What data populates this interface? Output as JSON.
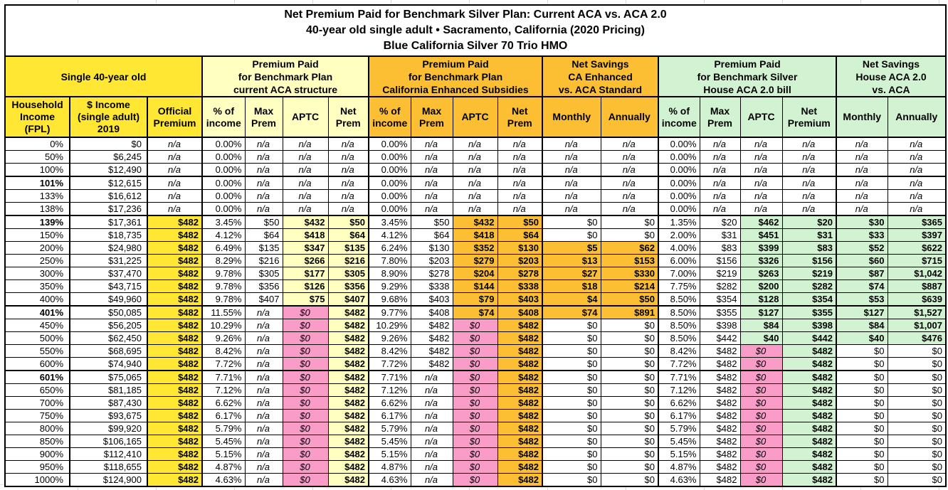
{
  "colors": {
    "yellow": "#FFE733",
    "light_yellow": "#FFFFC0",
    "orange": "#FCBF33",
    "green": "#D2F3D2",
    "pink": "#F99CC8"
  },
  "chart_data": {
    "type": "table",
    "title_lines": [
      "Net Premium Paid for Benchmark Silver Plan: Current ACA vs. ACA 2.0",
      "40-year old single adult • Sacramento, California (2020 Pricing)",
      "Blue California Silver 70 Trio HMO"
    ],
    "groups": [
      {
        "label": "Single 40-year old",
        "span": 3,
        "bg": "y"
      },
      {
        "label": "Premium Paid\nfor Benchmark Plan\ncurrent ACA structure",
        "span": 4,
        "bg": "ly"
      },
      {
        "label": "Premium Paid\nfor Benchmark Plan\nCalifornia Enhanced Subsidies",
        "span": 4,
        "bg": "o"
      },
      {
        "label": "Net Savings\nCA Enhanced\nvs. ACA Standard",
        "span": 2,
        "bg": "o"
      },
      {
        "label": "Premium Paid\nfor Benchmark Silver\nHouse ACA 2.0 bill",
        "span": 4,
        "bg": "g"
      },
      {
        "label": "Net Savings\nHouse ACA 2.0\nvs. ACA",
        "span": 2,
        "bg": "g"
      }
    ],
    "columns": [
      {
        "t": "Household\nIncome\n(FPL)",
        "g": "y"
      },
      {
        "t": "$ Income\n(single adult)\n2019",
        "g": "y"
      },
      {
        "t": "Official\nPremium",
        "g": "y"
      },
      {
        "t": "% of\nincome",
        "g": "ly"
      },
      {
        "t": "Max\nPrem",
        "g": "ly"
      },
      {
        "t": "APTC",
        "g": "ly"
      },
      {
        "t": "Net\nPrem",
        "g": "ly"
      },
      {
        "t": "% of\nincome",
        "g": "o"
      },
      {
        "t": "Max\nPrem",
        "g": "o"
      },
      {
        "t": "APTC",
        "g": "o"
      },
      {
        "t": "Net\nPrem",
        "g": "o"
      },
      {
        "t": "Monthly",
        "g": "o"
      },
      {
        "t": "Annually",
        "g": "o"
      },
      {
        "t": "% of\nincome",
        "g": "g"
      },
      {
        "t": "Max\nPrem",
        "g": "g"
      },
      {
        "t": "APTC",
        "g": "g"
      },
      {
        "t": "Net\nPremium",
        "g": "g"
      },
      {
        "t": "Monthly",
        "g": "g"
      },
      {
        "t": "Annually",
        "g": "g"
      }
    ],
    "col_keys": [
      "income",
      "official_premium",
      "aca_pct_income",
      "aca_max_prem",
      "aca_aptc",
      "aca_net_prem",
      "ca_pct_income",
      "ca_max_prem",
      "ca_aptc",
      "ca_net_prem",
      "ca_savings_monthly",
      "ca_savings_annually",
      "house_pct_income",
      "house_max_prem",
      "house_aptc",
      "house_net_premium",
      "house_savings_monthly",
      "house_savings_annually"
    ],
    "rows": [
      {
        "fpl": "0%",
        "b": false,
        "sep": false,
        "c": [
          "$0",
          "n/a|na",
          "0.00%|i",
          "n/a|na",
          "n/a|na",
          "n/a|na",
          "0.00%|i",
          "n/a|na",
          "n/a|na",
          "n/a|na",
          "n/a|na",
          "n/a|na",
          "0.00%|i",
          "n/a|na",
          "n/a|na",
          "n/a|na",
          "n/a|na",
          "n/a|na"
        ]
      },
      {
        "fpl": "50%",
        "b": false,
        "sep": false,
        "c": [
          "$6,245",
          "n/a|na",
          "0.00%|i",
          "n/a|na",
          "n/a|na",
          "n/a|na",
          "0.00%|i",
          "n/a|na",
          "n/a|na",
          "n/a|na",
          "n/a|na",
          "n/a|na",
          "0.00%|i",
          "n/a|na",
          "n/a|na",
          "n/a|na",
          "n/a|na",
          "n/a|na"
        ]
      },
      {
        "fpl": "100%",
        "b": false,
        "sep": false,
        "c": [
          "$12,490",
          "n/a|na",
          "0.00%|i",
          "n/a|na",
          "n/a|na",
          "n/a|na",
          "0.00%|i",
          "n/a|na",
          "n/a|na",
          "n/a|na",
          "n/a|na",
          "n/a|na",
          "0.00%|i",
          "n/a|na",
          "n/a|na",
          "n/a|na",
          "n/a|na",
          "n/a|na"
        ]
      },
      {
        "fpl": "101%",
        "b": true,
        "sep": true,
        "c": [
          "$12,615",
          "n/a|na",
          "0.00%|i",
          "n/a|na",
          "n/a|na",
          "n/a|na",
          "0.00%|i",
          "n/a|na",
          "n/a|na",
          "n/a|na",
          "n/a|na",
          "n/a|na",
          "0.00%|i",
          "n/a|na",
          "n/a|na",
          "n/a|na",
          "n/a|na",
          "n/a|na"
        ]
      },
      {
        "fpl": "133%",
        "b": false,
        "sep": false,
        "c": [
          "$16,612",
          "n/a|na",
          "0.00%|i",
          "n/a|na",
          "n/a|na",
          "n/a|na",
          "0.00%|i",
          "n/a|na",
          "n/a|na",
          "n/a|na",
          "n/a|na",
          "n/a|na",
          "0.00%|i",
          "n/a|na",
          "n/a|na",
          "n/a|na",
          "n/a|na",
          "n/a|na"
        ]
      },
      {
        "fpl": "138%",
        "b": false,
        "sep": false,
        "c": [
          "$17,236",
          "n/a|na",
          "0.00%|i",
          "n/a|na",
          "n/a|na",
          "n/a|na",
          "0.00%|i",
          "n/a|na",
          "n/a|na",
          "n/a|na",
          "n/a|na",
          "n/a|na",
          "0.00%|i",
          "n/a|na",
          "n/a|na",
          "n/a|na",
          "n/a|na",
          "n/a|na"
        ]
      },
      {
        "fpl": "139%",
        "b": true,
        "sep": true,
        "c": [
          "$17,361",
          "$482|y",
          "3.45%",
          "$50",
          "$432|ly",
          "$50|ly",
          "3.45%",
          "$50",
          "$432|o",
          "$50|o",
          "$0",
          "$0",
          "1.35%",
          "$20",
          "$462|g",
          "$20|g",
          "$30|g",
          "$365|g"
        ]
      },
      {
        "fpl": "150%",
        "b": false,
        "sep": false,
        "c": [
          "$18,735",
          "$482|y",
          "4.12%",
          "$64",
          "$418|ly",
          "$64|ly",
          "4.12%",
          "$64",
          "$418|o",
          "$64|o",
          "$0",
          "$0",
          "2.00%",
          "$31",
          "$451|g",
          "$31|g",
          "$33|g",
          "$397|g"
        ]
      },
      {
        "fpl": "200%",
        "b": false,
        "sep": false,
        "c": [
          "$24,980",
          "$482|y",
          "6.49%",
          "$135",
          "$347|ly",
          "$135|ly",
          "6.24%",
          "$130",
          "$352|o",
          "$130|o",
          "$5|o",
          "$62|o",
          "4.00%",
          "$83",
          "$399|g",
          "$83|g",
          "$52|g",
          "$622|g"
        ]
      },
      {
        "fpl": "250%",
        "b": false,
        "sep": false,
        "c": [
          "$31,225",
          "$482|y",
          "8.29%",
          "$216",
          "$266|ly",
          "$216|ly",
          "7.80%",
          "$203",
          "$279|o",
          "$203|o",
          "$13|o",
          "$153|o",
          "6.00%",
          "$156",
          "$326|g",
          "$156|g",
          "$60|g",
          "$715|g"
        ]
      },
      {
        "fpl": "300%",
        "b": false,
        "sep": false,
        "c": [
          "$37,470",
          "$482|y",
          "9.78%",
          "$305",
          "$177|ly",
          "$305|ly",
          "8.90%",
          "$278",
          "$204|o",
          "$278|o",
          "$27|o",
          "$330|o",
          "7.00%",
          "$219",
          "$263|g",
          "$219|g",
          "$87|g",
          "$1,042|g"
        ]
      },
      {
        "fpl": "350%",
        "b": false,
        "sep": false,
        "c": [
          "$43,715",
          "$482|y",
          "9.78%",
          "$356",
          "$126|ly",
          "$356|ly",
          "9.29%",
          "$338",
          "$144|o",
          "$338|o",
          "$18|o",
          "$214|o",
          "7.75%",
          "$282",
          "$200|g",
          "$282|g",
          "$74|g",
          "$887|g"
        ]
      },
      {
        "fpl": "400%",
        "b": false,
        "sep": false,
        "c": [
          "$49,960",
          "$482|y",
          "9.78%",
          "$407",
          "$75|ly",
          "$407|ly",
          "9.68%",
          "$403",
          "$79|o",
          "$403|o",
          "$4|o",
          "$50|o",
          "8.50%",
          "$354",
          "$128|g",
          "$354|g",
          "$53|g",
          "$639|g"
        ]
      },
      {
        "fpl": "401%",
        "b": true,
        "sep": true,
        "c": [
          "$50,085",
          "$482|y",
          "11.55%|i",
          "n/a|na",
          "$0|pk",
          "$482|ly",
          "9.77%",
          "$408",
          "$74|o",
          "$408|o",
          "$74|o",
          "$891|o",
          "8.50%",
          "$355",
          "$127|g",
          "$355|g",
          "$127|g",
          "$1,527|g"
        ]
      },
      {
        "fpl": "450%",
        "b": false,
        "sep": false,
        "c": [
          "$56,205",
          "$482|y",
          "10.29%|i",
          "n/a|na",
          "$0|pk",
          "$482|ly",
          "10.29%|i",
          "$482",
          "$0|pk",
          "$482|o",
          "$0",
          "$0",
          "8.50%",
          "$398",
          "$84|g",
          "$398|g",
          "$84|g",
          "$1,007|g"
        ]
      },
      {
        "fpl": "500%",
        "b": false,
        "sep": false,
        "c": [
          "$62,450",
          "$482|y",
          "9.26%|i",
          "n/a|na",
          "$0|pk",
          "$482|ly",
          "9.26%|i",
          "$482",
          "$0|pk",
          "$482|o",
          "$0",
          "$0",
          "8.50%",
          "$442",
          "$40|g",
          "$442|g",
          "$40|g",
          "$476|g"
        ]
      },
      {
        "fpl": "550%",
        "b": false,
        "sep": false,
        "c": [
          "$68,695",
          "$482|y",
          "8.42%|i",
          "n/a|na",
          "$0|pk",
          "$482|ly",
          "8.42%|i",
          "$482",
          "$0|pk",
          "$482|o",
          "$0",
          "$0",
          "8.42%|i",
          "$482",
          "$0|pk",
          "$482|g",
          "$0",
          "$0"
        ]
      },
      {
        "fpl": "600%",
        "b": false,
        "sep": false,
        "c": [
          "$74,940",
          "$482|y",
          "7.72%|i",
          "n/a|na",
          "$0|pk",
          "$482|ly",
          "7.72%|i",
          "$482",
          "$0|pk",
          "$482|o",
          "$0",
          "$0",
          "7.72%|i",
          "$482",
          "$0|pk",
          "$482|g",
          "$0",
          "$0"
        ]
      },
      {
        "fpl": "601%",
        "b": true,
        "sep": true,
        "c": [
          "$75,065",
          "$482|y",
          "7.71%|i",
          "n/a|na",
          "$0|pk",
          "$482|ly",
          "7.71%|i",
          "n/a|na",
          "$0|pk",
          "$482|o",
          "$0",
          "$0",
          "7.71%|i",
          "$482",
          "$0|pk",
          "$482|g",
          "$0",
          "$0"
        ]
      },
      {
        "fpl": "650%",
        "b": false,
        "sep": false,
        "c": [
          "$81,185",
          "$482|y",
          "7.12%|i",
          "n/a|na",
          "$0|pk",
          "$482|ly",
          "7.12%|i",
          "n/a|na",
          "$0|pk",
          "$482|o",
          "$0",
          "$0",
          "7.12%|i",
          "$482",
          "$0|pk",
          "$482|g",
          "$0",
          "$0"
        ]
      },
      {
        "fpl": "700%",
        "b": false,
        "sep": false,
        "c": [
          "$87,430",
          "$482|y",
          "6.62%|i",
          "n/a|na",
          "$0|pk",
          "$482|ly",
          "6.62%|i",
          "n/a|na",
          "$0|pk",
          "$482|o",
          "$0",
          "$0",
          "6.62%|i",
          "$482",
          "$0|pk",
          "$482|g",
          "$0",
          "$0"
        ]
      },
      {
        "fpl": "750%",
        "b": false,
        "sep": false,
        "c": [
          "$93,675",
          "$482|y",
          "6.17%|i",
          "n/a|na",
          "$0|pk",
          "$482|ly",
          "6.17%|i",
          "n/a|na",
          "$0|pk",
          "$482|o",
          "$0",
          "$0",
          "6.17%|i",
          "$482",
          "$0|pk",
          "$482|g",
          "$0",
          "$0"
        ]
      },
      {
        "fpl": "800%",
        "b": false,
        "sep": false,
        "c": [
          "$99,920",
          "$482|y",
          "5.79%|i",
          "n/a|na",
          "$0|pk",
          "$482|ly",
          "5.79%|i",
          "n/a|na",
          "$0|pk",
          "$482|o",
          "$0",
          "$0",
          "5.79%|i",
          "$482",
          "$0|pk",
          "$482|g",
          "$0",
          "$0"
        ]
      },
      {
        "fpl": "850%",
        "b": false,
        "sep": false,
        "c": [
          "$106,165",
          "$482|y",
          "5.45%|i",
          "n/a|na",
          "$0|pk",
          "$482|ly",
          "5.45%|i",
          "n/a|na",
          "$0|pk",
          "$482|o",
          "$0",
          "$0",
          "5.45%|i",
          "$482",
          "$0|pk",
          "$482|g",
          "$0",
          "$0"
        ]
      },
      {
        "fpl": "900%",
        "b": false,
        "sep": false,
        "c": [
          "$112,410",
          "$482|y",
          "5.15%|i",
          "n/a|na",
          "$0|pk",
          "$482|ly",
          "5.15%|i",
          "n/a|na",
          "$0|pk",
          "$482|o",
          "$0",
          "$0",
          "5.15%|i",
          "$482",
          "$0|pk",
          "$482|g",
          "$0",
          "$0"
        ]
      },
      {
        "fpl": "950%",
        "b": false,
        "sep": false,
        "c": [
          "$118,655",
          "$482|y",
          "4.87%|i",
          "n/a|na",
          "$0|pk",
          "$482|ly",
          "4.87%|i",
          "n/a|na",
          "$0|pk",
          "$482|o",
          "$0",
          "$0",
          "4.87%|i",
          "$482",
          "$0|pk",
          "$482|g",
          "$0",
          "$0"
        ]
      },
      {
        "fpl": "1000%",
        "b": false,
        "sep": false,
        "c": [
          "$124,900",
          "$482|y",
          "4.63%|i",
          "n/a|na",
          "$0|pk",
          "$482|ly",
          "4.63%|i",
          "n/a|na",
          "$0|pk",
          "$482|o",
          "$0",
          "$0",
          "4.63%|i",
          "$482",
          "$0|pk",
          "$482|g",
          "$0",
          "$0"
        ]
      }
    ]
  }
}
